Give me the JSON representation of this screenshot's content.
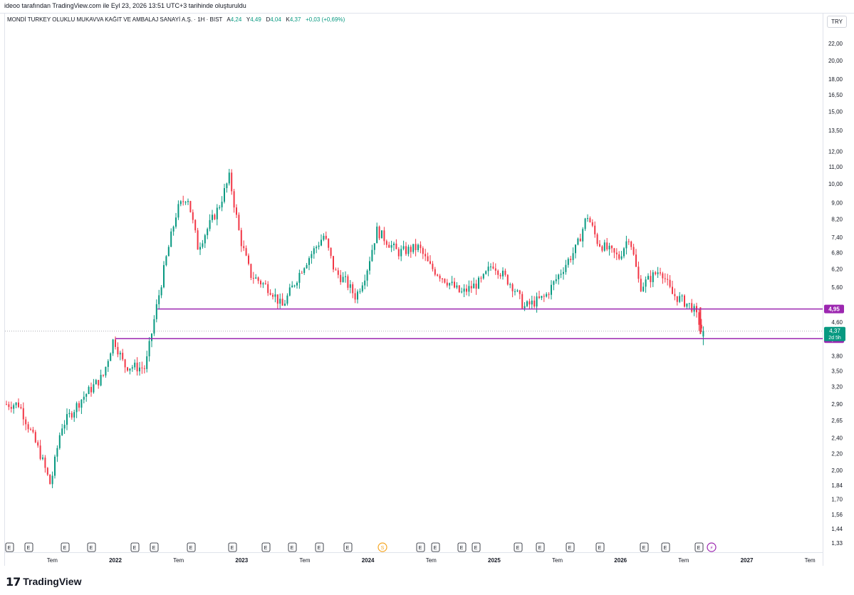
{
  "header": {
    "text": "ideoo tarafından TradingView.com ile Eyl 23, 2026 13:51 UTC+3 tarihinde oluşturuldu"
  },
  "legend": {
    "symbol": "MONDİ TURKEY OLUKLU MUKAVVA KAĞIT VE AMBALAJ SANAYİ A.Ş. · 1H · BIST",
    "open_label": "A",
    "open": "4,24",
    "high_label": "Y",
    "high": "4,49",
    "low_label": "D",
    "low": "4,04",
    "close_label": "K",
    "close": "4,37",
    "change": "+0,03 (+0,69%)"
  },
  "currency": "TRY",
  "colors": {
    "up": "#089981",
    "down": "#f23645",
    "level": "#9c27b0",
    "current": "#089981"
  },
  "footer": {
    "logo_mark": "17",
    "logo_text": "TradingView"
  },
  "chart_data": {
    "type": "candlestick",
    "title": "MONDİ TURKEY OLUKLU MUKAVVA KAĞIT VE AMBALAJ SANAYİ A.Ş. · 1H · BIST",
    "y_scale": "log",
    "y_ticks": [
      "22,00",
      "20,00",
      "18,00",
      "16,50",
      "15,00",
      "13,50",
      "12,00",
      "11,00",
      "10,00",
      "9,00",
      "8,20",
      "7,40",
      "6,80",
      "6,20",
      "5,60",
      "5,00",
      "4,60",
      "3,80",
      "3,50",
      "3,20",
      "2,90",
      "2,65",
      "2,40",
      "2,20",
      "2,00",
      "1,84",
      "1,70",
      "1,56",
      "1,44",
      "1,33"
    ],
    "y_tick_values": [
      22.0,
      20.0,
      18.0,
      16.5,
      15.0,
      13.5,
      12.0,
      11.0,
      10.0,
      9.0,
      8.2,
      7.4,
      6.8,
      6.2,
      5.6,
      5.0,
      4.6,
      3.8,
      3.5,
      3.2,
      2.9,
      2.65,
      2.4,
      2.2,
      2.0,
      1.84,
      1.7,
      1.56,
      1.44,
      1.33
    ],
    "x_ticks": [
      "Tem",
      "2022",
      "Tem",
      "2023",
      "Tem",
      "2024",
      "Tem",
      "2025",
      "Tem",
      "2026",
      "Tem",
      "2027",
      "Tem"
    ],
    "x_tick_dates": [
      "2021-07",
      "2022-01",
      "2022-07",
      "2023-01",
      "2023-07",
      "2024-01",
      "2024-07",
      "2025-01",
      "2025-07",
      "2026-01",
      "2026-07",
      "2027-01",
      "2027-07"
    ],
    "series": [
      {
        "date": "2021-04",
        "close": 2.9
      },
      {
        "date": "2021-06",
        "close": 2.2
      },
      {
        "date": "2021-07",
        "close": 1.84
      },
      {
        "date": "2021-08",
        "close": 2.55
      },
      {
        "date": "2021-10",
        "close": 3.0
      },
      {
        "date": "2021-12",
        "close": 3.4
      },
      {
        "date": "2022-01",
        "close": 4.2
      },
      {
        "date": "2022-02",
        "close": 3.6
      },
      {
        "date": "2022-04",
        "close": 3.55
      },
      {
        "date": "2022-05",
        "close": 4.9
      },
      {
        "date": "2022-06",
        "close": 6.6
      },
      {
        "date": "2022-07",
        "close": 8.6
      },
      {
        "date": "2022-08",
        "close": 9.4
      },
      {
        "date": "2022-09",
        "close": 7.0
      },
      {
        "date": "2022-11",
        "close": 8.8
      },
      {
        "date": "2022-12",
        "close": 10.4
      },
      {
        "date": "2023-01",
        "close": 7.4
      },
      {
        "date": "2023-02",
        "close": 6.0
      },
      {
        "date": "2023-04",
        "close": 5.5
      },
      {
        "date": "2023-05",
        "close": 5.0
      },
      {
        "date": "2023-07",
        "close": 6.3
      },
      {
        "date": "2023-09",
        "close": 7.5
      },
      {
        "date": "2023-10",
        "close": 6.1
      },
      {
        "date": "2023-11",
        "close": 5.8
      },
      {
        "date": "2023-12",
        "close": 5.3
      },
      {
        "date": "2024-01",
        "close": 6.1
      },
      {
        "date": "2024-02",
        "close": 7.7
      },
      {
        "date": "2024-04",
        "close": 6.8
      },
      {
        "date": "2024-06",
        "close": 7.0
      },
      {
        "date": "2024-07",
        "close": 6.3
      },
      {
        "date": "2024-09",
        "close": 5.7
      },
      {
        "date": "2024-10",
        "close": 5.4
      },
      {
        "date": "2024-12",
        "close": 5.8
      },
      {
        "date": "2025-01",
        "close": 6.4
      },
      {
        "date": "2025-03",
        "close": 5.6
      },
      {
        "date": "2025-04",
        "close": 5.0
      },
      {
        "date": "2025-06",
        "close": 5.3
      },
      {
        "date": "2025-08",
        "close": 6.4
      },
      {
        "date": "2025-09",
        "close": 7.0
      },
      {
        "date": "2025-10",
        "close": 8.4
      },
      {
        "date": "2025-11",
        "close": 7.2
      },
      {
        "date": "2026-01",
        "close": 6.6
      },
      {
        "date": "2026-02",
        "close": 7.5
      },
      {
        "date": "2026-03",
        "close": 5.6
      },
      {
        "date": "2026-05",
        "close": 6.2
      },
      {
        "date": "2026-06",
        "close": 5.4
      },
      {
        "date": "2026-08",
        "close": 5.0
      },
      {
        "date": "2026-09",
        "close": 4.37
      }
    ],
    "horizontal_levels": [
      {
        "value": 4.95,
        "label": "4,95"
      },
      {
        "value": 4.19,
        "label": "4,19"
      }
    ],
    "current_price": {
      "value": 4.37,
      "label": "4,37",
      "countdown": "2d 5h"
    },
    "event_markers": {
      "earnings_label": "E",
      "dividend_label": "S",
      "split_label": "⚡"
    }
  }
}
